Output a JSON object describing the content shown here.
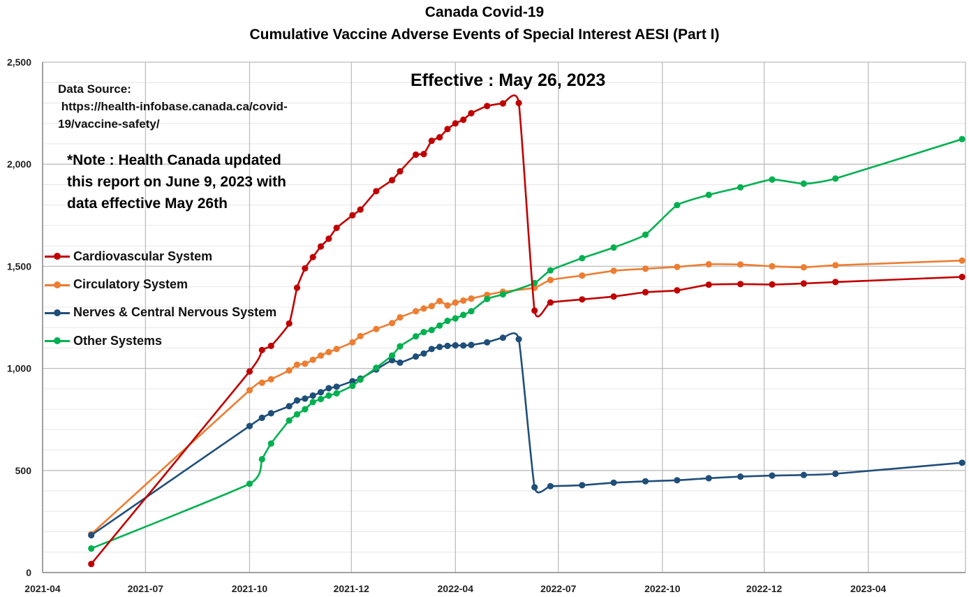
{
  "chart_data": {
    "type": "line",
    "title": "Canada Covid-19",
    "subtitle": "Cumulative Vaccine Adverse Events of Special Interest AESI (Part I)",
    "annotations": {
      "effective": "Effective : May 26, 2023",
      "source_label": "Data Source:",
      "source_url_line1": " https://health-infobase.canada.ca/covid-",
      "source_url_line2": "19/vaccine-safety/",
      "note_line1": "*Note : Health Canada updated",
      "note_line2": "this report on June 9, 2023 with",
      "note_line3": "data effective May 26th"
    },
    "x_axis": {
      "tick_labels": [
        "2021-04",
        "2021-07",
        "2021-10",
        "2021-12",
        "2022-04",
        "2022-07",
        "2022-10",
        "2022-12",
        "2023-04"
      ],
      "tick_dates": [
        "2021-04-01",
        "2021-07-01",
        "2021-10-01",
        "2021-12-30",
        "2022-04-01",
        "2022-07-01",
        "2022-10-01",
        "2022-12-30",
        "2023-04-01"
      ],
      "range": [
        "2021-04-01",
        "2023-06-26"
      ]
    },
    "y_axis": {
      "range": [
        0,
        2500
      ],
      "tick_labels": [
        "0",
        "500",
        "1,000",
        "1,500",
        "2,000",
        "2,500"
      ],
      "tick_values": [
        0,
        500,
        1000,
        1500,
        2000,
        2500
      ],
      "minor_step": 100
    },
    "grid": true,
    "legend_position": "left-middle",
    "series": [
      {
        "name": "Cardiovascular System",
        "color": "#c00000",
        "points": [
          [
            "2021-05-14",
            42
          ],
          [
            "2021-10-01",
            985
          ],
          [
            "2021-10-12",
            1090
          ],
          [
            "2021-10-20",
            1110
          ],
          [
            "2021-11-05",
            1220
          ],
          [
            "2021-11-12",
            1395
          ],
          [
            "2021-11-19",
            1490
          ],
          [
            "2021-11-26",
            1545
          ],
          [
            "2021-12-03",
            1597
          ],
          [
            "2021-12-10",
            1635
          ],
          [
            "2021-12-17",
            1688
          ],
          [
            "2021-12-31",
            1750
          ],
          [
            "2022-01-07",
            1778
          ],
          [
            "2022-01-21",
            1868
          ],
          [
            "2022-02-04",
            1922
          ],
          [
            "2022-02-11",
            1965
          ],
          [
            "2022-02-25",
            2047
          ],
          [
            "2022-03-04",
            2050
          ],
          [
            "2022-03-11",
            2115
          ],
          [
            "2022-03-18",
            2132
          ],
          [
            "2022-03-25",
            2172
          ],
          [
            "2022-04-01",
            2200
          ],
          [
            "2022-04-08",
            2218
          ],
          [
            "2022-04-15",
            2250
          ],
          [
            "2022-04-29",
            2285
          ],
          [
            "2022-05-13",
            2298
          ],
          [
            "2022-05-27",
            2300
          ],
          [
            "2022-06-10",
            1283
          ],
          [
            "2022-06-24",
            1323
          ],
          [
            "2022-07-22",
            1338
          ],
          [
            "2022-08-19",
            1352
          ],
          [
            "2022-09-16",
            1373
          ],
          [
            "2022-10-14",
            1382
          ],
          [
            "2022-11-11",
            1410
          ],
          [
            "2022-12-09",
            1413
          ],
          [
            "2023-01-06",
            1411
          ],
          [
            "2023-02-03",
            1416
          ],
          [
            "2023-03-03",
            1423
          ],
          [
            "2023-06-23",
            1448
          ]
        ]
      },
      {
        "name": "Circulatory System",
        "color": "#ed7d31",
        "points": [
          [
            "2021-05-14",
            188
          ],
          [
            "2021-10-01",
            893
          ],
          [
            "2021-10-12",
            930
          ],
          [
            "2021-10-20",
            947
          ],
          [
            "2021-11-05",
            990
          ],
          [
            "2021-11-12",
            1018
          ],
          [
            "2021-11-19",
            1023
          ],
          [
            "2021-11-26",
            1042
          ],
          [
            "2021-12-03",
            1063
          ],
          [
            "2021-12-10",
            1080
          ],
          [
            "2021-12-17",
            1095
          ],
          [
            "2021-12-31",
            1128
          ],
          [
            "2022-01-07",
            1158
          ],
          [
            "2022-01-21",
            1193
          ],
          [
            "2022-02-04",
            1222
          ],
          [
            "2022-02-11",
            1250
          ],
          [
            "2022-02-25",
            1280
          ],
          [
            "2022-03-04",
            1293
          ],
          [
            "2022-03-11",
            1305
          ],
          [
            "2022-03-18",
            1330
          ],
          [
            "2022-03-25",
            1308
          ],
          [
            "2022-04-01",
            1322
          ],
          [
            "2022-04-08",
            1332
          ],
          [
            "2022-04-15",
            1342
          ],
          [
            "2022-04-29",
            1360
          ],
          [
            "2022-05-13",
            1375
          ],
          [
            "2022-06-10",
            1395
          ],
          [
            "2022-06-24",
            1433
          ],
          [
            "2022-07-22",
            1455
          ],
          [
            "2022-08-19",
            1478
          ],
          [
            "2022-09-16",
            1488
          ],
          [
            "2022-10-14",
            1497
          ],
          [
            "2022-11-11",
            1510
          ],
          [
            "2022-12-09",
            1509
          ],
          [
            "2023-01-06",
            1500
          ],
          [
            "2023-02-03",
            1495
          ],
          [
            "2023-03-03",
            1505
          ],
          [
            "2023-06-23",
            1528
          ]
        ]
      },
      {
        "name": "Nerves & Central Nervous System",
        "color": "#1f4e79",
        "points": [
          [
            "2021-05-14",
            183
          ],
          [
            "2021-10-01",
            718
          ],
          [
            "2021-10-12",
            758
          ],
          [
            "2021-10-20",
            780
          ],
          [
            "2021-11-05",
            815
          ],
          [
            "2021-11-12",
            843
          ],
          [
            "2021-11-19",
            852
          ],
          [
            "2021-11-26",
            867
          ],
          [
            "2021-12-03",
            883
          ],
          [
            "2021-12-10",
            903
          ],
          [
            "2021-12-17",
            910
          ],
          [
            "2021-12-31",
            937
          ],
          [
            "2022-01-07",
            950
          ],
          [
            "2022-01-21",
            995
          ],
          [
            "2022-02-04",
            1040
          ],
          [
            "2022-02-11",
            1028
          ],
          [
            "2022-02-25",
            1058
          ],
          [
            "2022-03-04",
            1073
          ],
          [
            "2022-03-11",
            1095
          ],
          [
            "2022-03-18",
            1105
          ],
          [
            "2022-03-25",
            1110
          ],
          [
            "2022-04-01",
            1113
          ],
          [
            "2022-04-08",
            1112
          ],
          [
            "2022-04-15",
            1115
          ],
          [
            "2022-04-29",
            1128
          ],
          [
            "2022-05-13",
            1150
          ],
          [
            "2022-05-27",
            1143
          ],
          [
            "2022-06-10",
            418
          ],
          [
            "2022-06-24",
            423
          ],
          [
            "2022-07-22",
            428
          ],
          [
            "2022-08-19",
            440
          ],
          [
            "2022-09-16",
            447
          ],
          [
            "2022-10-14",
            452
          ],
          [
            "2022-11-11",
            462
          ],
          [
            "2022-12-09",
            470
          ],
          [
            "2023-01-06",
            475
          ],
          [
            "2023-02-03",
            478
          ],
          [
            "2023-03-03",
            484
          ],
          [
            "2023-06-23",
            538
          ]
        ]
      },
      {
        "name": "Other Systems",
        "color": "#00b050",
        "points": [
          [
            "2021-05-14",
            118
          ],
          [
            "2021-10-01",
            435
          ],
          [
            "2021-10-12",
            555
          ],
          [
            "2021-10-20",
            632
          ],
          [
            "2021-11-05",
            745
          ],
          [
            "2021-11-12",
            775
          ],
          [
            "2021-11-19",
            800
          ],
          [
            "2021-11-26",
            835
          ],
          [
            "2021-12-03",
            850
          ],
          [
            "2021-12-10",
            867
          ],
          [
            "2021-12-17",
            878
          ],
          [
            "2021-12-31",
            915
          ],
          [
            "2022-01-07",
            945
          ],
          [
            "2022-01-21",
            1003
          ],
          [
            "2022-02-04",
            1063
          ],
          [
            "2022-02-11",
            1108
          ],
          [
            "2022-02-25",
            1157
          ],
          [
            "2022-03-04",
            1178
          ],
          [
            "2022-03-11",
            1188
          ],
          [
            "2022-03-18",
            1210
          ],
          [
            "2022-03-25",
            1233
          ],
          [
            "2022-04-01",
            1245
          ],
          [
            "2022-04-08",
            1262
          ],
          [
            "2022-04-15",
            1280
          ],
          [
            "2022-04-29",
            1340
          ],
          [
            "2022-05-13",
            1363
          ],
          [
            "2022-06-10",
            1418
          ],
          [
            "2022-06-24",
            1480
          ],
          [
            "2022-07-22",
            1540
          ],
          [
            "2022-08-19",
            1592
          ],
          [
            "2022-09-16",
            1655
          ],
          [
            "2022-10-14",
            1800
          ],
          [
            "2022-11-11",
            1850
          ],
          [
            "2022-12-09",
            1887
          ],
          [
            "2023-01-06",
            1925
          ],
          [
            "2023-02-03",
            1905
          ],
          [
            "2023-03-03",
            1930
          ],
          [
            "2023-06-23",
            2123
          ]
        ]
      }
    ]
  }
}
